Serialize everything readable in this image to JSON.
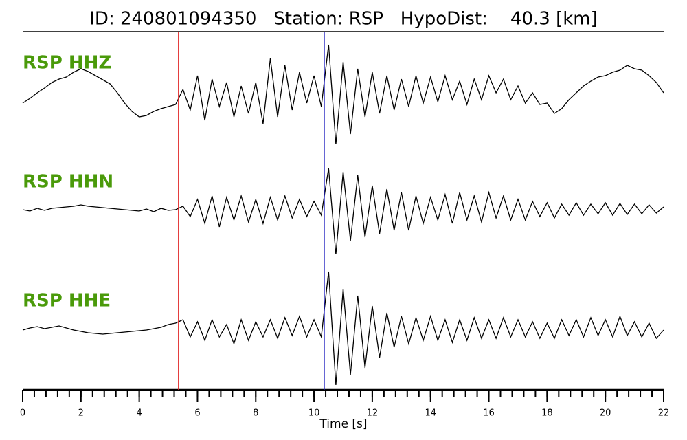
{
  "chart_data": {
    "type": "line",
    "title": "ID: 240801094350   Station: RSP   HypoDist:    40.3 [km]",
    "xlabel": "Time [s]",
    "xlim": [
      0,
      22
    ],
    "xticks": [
      0,
      2,
      4,
      6,
      8,
      10,
      12,
      14,
      16,
      18,
      20,
      22
    ],
    "xticks_minor": [
      0,
      0.4,
      0.8,
      1.2,
      1.6,
      2,
      2.4,
      2.8,
      3.2,
      3.6,
      4,
      4.4,
      4.8,
      5.2,
      5.6,
      6,
      6.4,
      6.8,
      7.2,
      7.6,
      8,
      8.4,
      8.8,
      9.2,
      9.6,
      10,
      10.4,
      10.8,
      11.2,
      11.6,
      12,
      12.4,
      12.8,
      13.2,
      13.6,
      14,
      14.4,
      14.8,
      15.2,
      15.6,
      16,
      16.4,
      16.8,
      17.2,
      17.6,
      18,
      18.4,
      18.8,
      19.2,
      19.6,
      20,
      20.4,
      20.8,
      21.2,
      21.6,
      22
    ],
    "vlines": [
      {
        "x": 5.35,
        "color": "#e02020"
      },
      {
        "x": 10.35,
        "color": "#2020c0"
      }
    ],
    "x": [
      0,
      0.25,
      0.5,
      0.75,
      1,
      1.25,
      1.5,
      1.75,
      2,
      2.25,
      2.5,
      2.75,
      3,
      3.25,
      3.5,
      3.75,
      4,
      4.25,
      4.5,
      4.75,
      5,
      5.25,
      5.5,
      5.75,
      6,
      6.25,
      6.5,
      6.75,
      7,
      7.25,
      7.5,
      7.75,
      8,
      8.25,
      8.5,
      8.75,
      9,
      9.25,
      9.5,
      9.75,
      10,
      10.25,
      10.5,
      10.75,
      11,
      11.25,
      11.5,
      11.75,
      12,
      12.25,
      12.5,
      12.75,
      13,
      13.25,
      13.5,
      13.75,
      14,
      14.25,
      14.5,
      14.75,
      15,
      15.25,
      15.5,
      15.75,
      16,
      16.25,
      16.5,
      16.75,
      17,
      17.25,
      17.5,
      17.75,
      18,
      18.25,
      18.5,
      18.75,
      19,
      19.25,
      19.5,
      19.75,
      20,
      20.25,
      20.5,
      20.75,
      21,
      21.25,
      21.5,
      21.75,
      22
    ],
    "label_color": "#4a9a0a",
    "color": "#000000",
    "series": [
      {
        "name": "RSP HHZ",
        "values": [
          -10,
          -3,
          5,
          12,
          20,
          25,
          28,
          35,
          40,
          36,
          30,
          24,
          18,
          5,
          -10,
          -22,
          -30,
          -28,
          -22,
          -18,
          -15,
          -12,
          10,
          -20,
          30,
          -35,
          25,
          -15,
          20,
          -30,
          15,
          -25,
          20,
          -40,
          55,
          -30,
          45,
          -20,
          35,
          -10,
          30,
          -15,
          75,
          -70,
          50,
          -55,
          40,
          -30,
          35,
          -25,
          30,
          -20,
          25,
          -15,
          30,
          -10,
          28,
          -8,
          30,
          -5,
          22,
          -12,
          25,
          -5,
          30,
          5,
          25,
          -5,
          15,
          -10,
          5,
          -12,
          -10,
          -25,
          -18,
          -5,
          5,
          15,
          22,
          28,
          30,
          35,
          38,
          45,
          40,
          38,
          30,
          20,
          5
        ]
      },
      {
        "name": "RSP HHN",
        "values": [
          0,
          -2,
          2,
          -1,
          2,
          3,
          4,
          5,
          7,
          5,
          4,
          3,
          2,
          1,
          0,
          -1,
          -2,
          1,
          -3,
          2,
          -1,
          0,
          5,
          -10,
          15,
          -20,
          20,
          -25,
          18,
          -15,
          20,
          -18,
          15,
          -20,
          18,
          -15,
          20,
          -12,
          15,
          -10,
          12,
          -8,
          60,
          -65,
          55,
          -45,
          50,
          -40,
          35,
          -35,
          30,
          -30,
          25,
          -30,
          20,
          -20,
          18,
          -15,
          22,
          -20,
          25,
          -15,
          20,
          -18,
          25,
          -12,
          20,
          -15,
          15,
          -15,
          12,
          -10,
          10,
          -12,
          8,
          -8,
          10,
          -8,
          8,
          -6,
          10,
          -8,
          9,
          -7,
          8,
          -6,
          7,
          -5,
          4
        ]
      },
      {
        "name": "RSP HHE",
        "values": [
          0,
          3,
          5,
          2,
          4,
          6,
          3,
          0,
          -2,
          -4,
          -5,
          -6,
          -5,
          -4,
          -3,
          -2,
          -1,
          0,
          2,
          4,
          8,
          10,
          15,
          -10,
          12,
          -15,
          15,
          -10,
          8,
          -20,
          15,
          -15,
          12,
          -10,
          15,
          -12,
          18,
          -8,
          20,
          -10,
          15,
          -10,
          85,
          -80,
          60,
          -65,
          50,
          -55,
          35,
          -40,
          25,
          -25,
          20,
          -20,
          18,
          -15,
          20,
          -15,
          15,
          -18,
          15,
          -15,
          18,
          -12,
          15,
          -12,
          18,
          -10,
          15,
          -10,
          12,
          -12,
          10,
          -12,
          15,
          -8,
          15,
          -10,
          18,
          -8,
          15,
          -10,
          20,
          -8,
          12,
          -10,
          10,
          -12,
          0
        ]
      }
    ]
  }
}
